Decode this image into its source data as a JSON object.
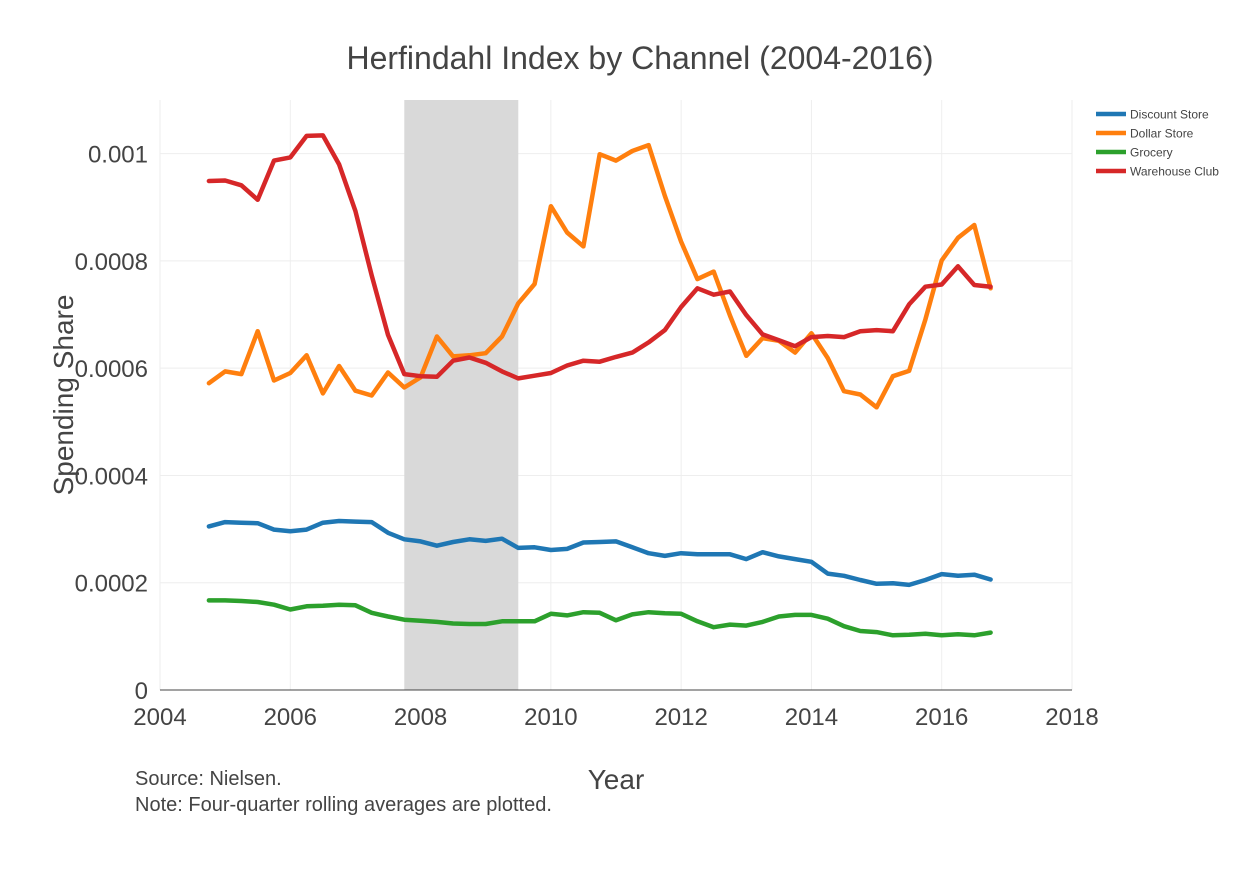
{
  "chart_data": {
    "type": "line",
    "title": "Herfindahl Index by Channel (2004-2016)",
    "xlabel": "Year",
    "ylabel": "Spending Share",
    "xlim": [
      2004,
      2018
    ],
    "ylim": [
      0,
      0.0011
    ],
    "xticks": [
      2004,
      2006,
      2008,
      2010,
      2012,
      2014,
      2016,
      2018
    ],
    "xtick_labels": [
      "2004",
      "2006",
      "2008",
      "2010",
      "2012",
      "2014",
      "2016",
      "2018"
    ],
    "yticks": [
      0,
      0.0002,
      0.0004,
      0.0006,
      0.0008,
      0.001
    ],
    "ytick_labels": [
      "0",
      "0.0002",
      "0.0004",
      "0.0006",
      "0.0008",
      "0.001"
    ],
    "grid": true,
    "legend_position": "top-right",
    "recession_band": {
      "start": 2007.75,
      "end": 2009.5,
      "color": "#d9d9d9"
    },
    "x": [
      2004.75,
      2005.0,
      2005.25,
      2005.5,
      2005.75,
      2006.0,
      2006.25,
      2006.5,
      2006.75,
      2007.0,
      2007.25,
      2007.5,
      2007.75,
      2008.0,
      2008.25,
      2008.5,
      2008.75,
      2009.0,
      2009.25,
      2009.5,
      2009.75,
      2010.0,
      2010.25,
      2010.5,
      2010.75,
      2011.0,
      2011.25,
      2011.5,
      2011.75,
      2012.0,
      2012.25,
      2012.5,
      2012.75,
      2013.0,
      2013.25,
      2013.5,
      2013.75,
      2014.0,
      2014.25,
      2014.5,
      2014.75,
      2015.0,
      2015.25,
      2015.5,
      2015.75,
      2016.0,
      2016.25,
      2016.5,
      2016.75
    ],
    "series": [
      {
        "name": "Discount Store",
        "color": "#1f77b4",
        "values": [
          0.000305,
          0.000313,
          0.000312,
          0.000311,
          0.000299,
          0.000296,
          0.000299,
          0.000312,
          0.000315,
          0.000314,
          0.000313,
          0.000293,
          0.000281,
          0.000277,
          0.000269,
          0.000276,
          0.000281,
          0.000278,
          0.000282,
          0.000265,
          0.000266,
          0.000261,
          0.000263,
          0.000275,
          0.000276,
          0.000277,
          0.000266,
          0.000255,
          0.00025,
          0.000255,
          0.000253,
          0.000253,
          0.000253,
          0.000244,
          0.000257,
          0.000249,
          0.000244,
          0.000239,
          0.000217,
          0.000213,
          0.000205,
          0.000198,
          0.000199,
          0.000196,
          0.000205,
          0.000216,
          0.000213,
          0.000215,
          0.000206
        ]
      },
      {
        "name": "Dollar Store",
        "color": "#ff7f0e",
        "values": [
          0.000572,
          0.000594,
          0.000589,
          0.000669,
          0.000577,
          0.000591,
          0.000624,
          0.000553,
          0.000604,
          0.000558,
          0.000549,
          0.000592,
          0.000564,
          0.000583,
          0.000659,
          0.000622,
          0.000624,
          0.000628,
          0.000659,
          0.000721,
          0.000757,
          0.000902,
          0.000853,
          0.000827,
          0.000999,
          0.000987,
          0.001005,
          0.001016,
          0.000921,
          0.000836,
          0.000766,
          0.00078,
          0.000698,
          0.000623,
          0.000656,
          0.000651,
          0.000629,
          0.000665,
          0.000619,
          0.000557,
          0.000551,
          0.000527,
          0.000585,
          0.000595,
          0.000691,
          0.000801,
          0.000843,
          0.000867,
          0.000749
        ]
      },
      {
        "name": "Grocery",
        "color": "#2ca02c",
        "values": [
          0.000167,
          0.000167,
          0.000166,
          0.000164,
          0.000159,
          0.00015,
          0.000156,
          0.000157,
          0.000159,
          0.000158,
          0.000144,
          0.000137,
          0.000131,
          0.000129,
          0.000127,
          0.000124,
          0.000123,
          0.000123,
          0.000128,
          0.000128,
          0.000128,
          0.000142,
          0.000139,
          0.000145,
          0.000144,
          0.00013,
          0.000141,
          0.000145,
          0.000143,
          0.000142,
          0.000128,
          0.000117,
          0.000122,
          0.00012,
          0.000127,
          0.000137,
          0.00014,
          0.00014,
          0.000133,
          0.000119,
          0.00011,
          0.000108,
          0.000102,
          0.000103,
          0.000105,
          0.000102,
          0.000104,
          0.000102,
          0.000107
        ]
      },
      {
        "name": "Warehouse Club",
        "color": "#d62728",
        "values": [
          0.000949,
          0.00095,
          0.000941,
          0.000914,
          0.000987,
          0.000993,
          0.001033,
          0.001034,
          0.00098,
          0.000893,
          0.000773,
          0.000662,
          0.000589,
          0.000585,
          0.000584,
          0.000614,
          0.00062,
          0.00061,
          0.000594,
          0.000581,
          0.000586,
          0.000591,
          0.000605,
          0.000614,
          0.000612,
          0.000621,
          0.000629,
          0.000648,
          0.000671,
          0.000714,
          0.000749,
          0.000737,
          0.000743,
          0.000699,
          0.000663,
          0.000652,
          0.000641,
          0.000658,
          0.00066,
          0.000658,
          0.000669,
          0.000671,
          0.000669,
          0.000719,
          0.000752,
          0.000756,
          0.00079,
          0.000755,
          0.000752
        ]
      }
    ],
    "annotations": [
      "Source: Nielsen.",
      "Note: Four-quarter rolling averages are plotted."
    ]
  }
}
